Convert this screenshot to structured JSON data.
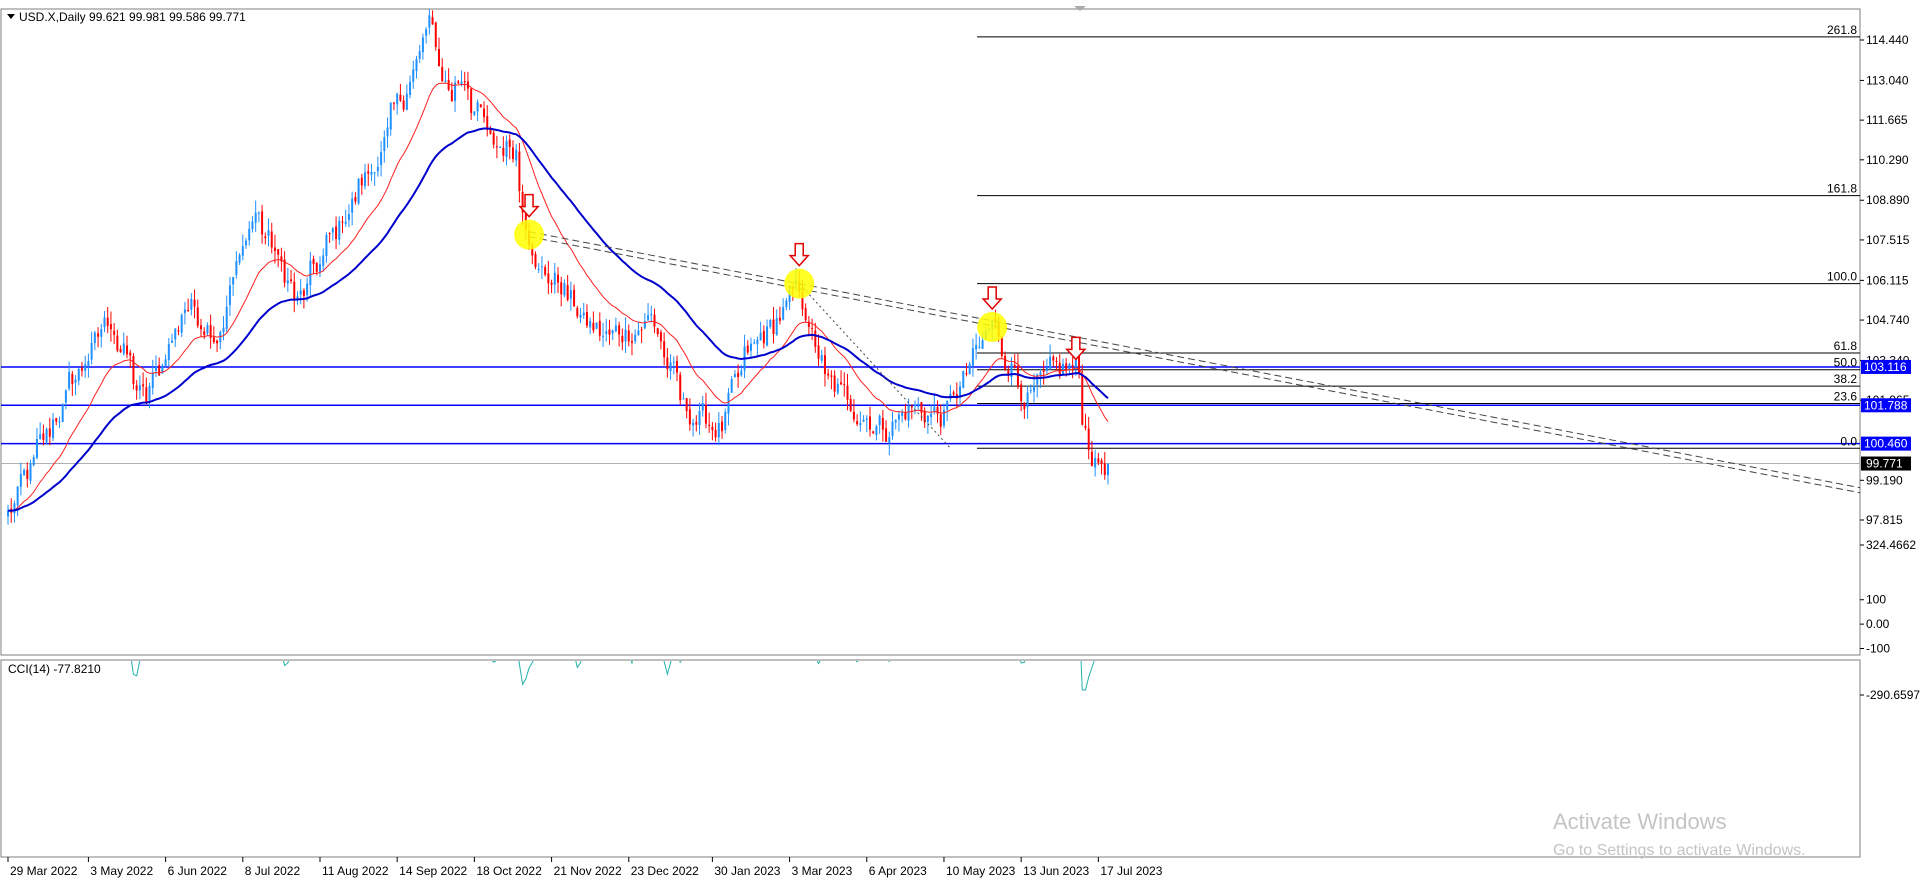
{
  "chart_data": {
    "type": "candlestick",
    "symbol_header": "USD.X,Daily  99.621 99.981 99.586 99.771",
    "price_scale": [
      "114.440",
      "113.040",
      "111.665",
      "110.290",
      "108.890",
      "107.515",
      "106.115",
      "104.740",
      "103.340",
      "101.965",
      "99.190",
      "97.815"
    ],
    "date_labels": [
      "29 Mar 2022",
      "3 May 2022",
      "6 Jun 2022",
      "8 Jul 2022",
      "11 Aug 2022",
      "14 Sep 2022",
      "18 Oct 2022",
      "21 Nov 2022",
      "23 Dec 2022",
      "30 Jan 2023",
      "3 Mar 2023",
      "6 Apr 2023",
      "10 May 2023",
      "13 Jun 2023",
      "17 Jul 2023"
    ],
    "last_price": "99.771",
    "price_waypoints": [
      [
        "2022-03-29",
        98.0
      ],
      [
        "2022-04-12",
        100.3
      ],
      [
        "2022-04-26",
        102.6
      ],
      [
        "2022-05-12",
        104.8
      ],
      [
        "2022-05-27",
        101.8
      ],
      [
        "2022-06-14",
        105.3
      ],
      [
        "2022-06-28",
        104.4
      ],
      [
        "2022-07-14",
        108.5
      ],
      [
        "2022-08-02",
        105.3
      ],
      [
        "2022-08-25",
        108.8
      ],
      [
        "2022-09-07",
        110.6
      ],
      [
        "2022-09-28",
        114.8
      ],
      [
        "2022-10-07",
        112.5
      ],
      [
        "2022-10-13",
        113.3
      ],
      [
        "2022-10-25",
        110.7
      ],
      [
        "2022-11-04",
        110.8
      ],
      [
        "2022-11-10",
        108.0
      ],
      [
        "2022-11-15",
        106.4
      ],
      [
        "2022-11-24",
        106.0
      ],
      [
        "2022-12-05",
        104.6
      ],
      [
        "2022-12-15",
        104.1
      ],
      [
        "2023-01-03",
        104.8
      ],
      [
        "2023-01-17",
        101.6
      ],
      [
        "2023-02-02",
        101.0
      ],
      [
        "2023-02-14",
        103.5
      ],
      [
        "2023-03-08",
        105.7
      ],
      [
        "2023-03-20",
        102.5
      ],
      [
        "2023-04-14",
        101.0
      ],
      [
        "2023-04-26",
        101.7
      ],
      [
        "2023-05-10",
        101.4
      ],
      [
        "2023-05-31",
        104.5
      ],
      [
        "2023-06-16",
        102.0
      ],
      [
        "2023-06-30",
        103.0
      ],
      [
        "2023-07-06",
        103.1
      ],
      [
        "2023-07-12",
        100.6
      ],
      [
        "2023-07-14",
        99.8
      ],
      [
        "2023-07-20",
        99.8
      ]
    ],
    "fibonacci": [
      {
        "label": "261.8",
        "price": 114.55
      },
      {
        "label": "161.8",
        "price": 109.05
      },
      {
        "label": "100.0",
        "price": 106.0
      },
      {
        "label": "61.8",
        "price": 103.6
      },
      {
        "label": "50.0",
        "price": 103.02
      },
      {
        "label": "38.2",
        "price": 102.45
      },
      {
        "label": "23.6",
        "price": 101.85
      },
      {
        "label": "0.0",
        "price": 100.3
      }
    ],
    "horizontal_lines": [
      {
        "label": "103.116",
        "price": 103.116
      },
      {
        "label": "101.788",
        "price": 101.788
      },
      {
        "label": "100.460",
        "price": 100.46
      }
    ],
    "indicator": {
      "name": "CCI(14) -77.8210",
      "scale": [
        "324.4662",
        "100",
        "0.00",
        "-100",
        "-290.6597"
      ],
      "max": 324.4662,
      "min": -290.6597,
      "levels": [
        100,
        0,
        -100
      ]
    },
    "colors": {
      "up": "#1e90ff",
      "down": "#ff0000",
      "ma_fast": "#ff2020",
      "ma_slow": "#0000cc",
      "hline": "#0000ff",
      "cci": "#20b2aa",
      "marker": "#ffff00"
    }
  },
  "watermark": {
    "line1": "Activate Windows",
    "line2": "Go to Settings to activate Windows."
  }
}
